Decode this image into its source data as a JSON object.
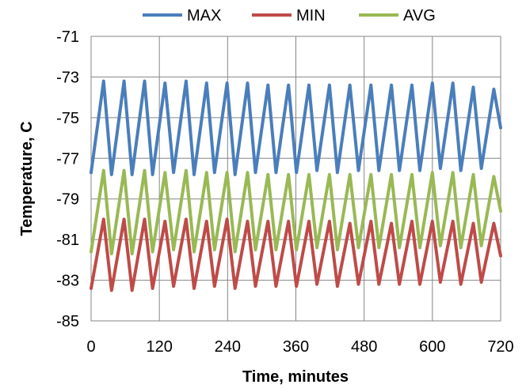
{
  "chart_data": {
    "type": "line",
    "title": "",
    "xlabel": "Time, minutes",
    "ylabel": "Temperature, C",
    "xlim": [
      0,
      720
    ],
    "ylim": [
      -85,
      -71
    ],
    "x_ticks": [
      0,
      120,
      240,
      360,
      480,
      600,
      720
    ],
    "y_ticks": [
      -71,
      -73,
      -75,
      -77,
      -79,
      -81,
      -83,
      -85
    ],
    "grid": true,
    "legend_position": "top",
    "series": [
      {
        "name": "MAX",
        "color": "#4a7ebb",
        "x": [
          0,
          22,
          36,
          58,
          72,
          94,
          108,
          130,
          145,
          167,
          181,
          203,
          217,
          239,
          253,
          275,
          289,
          311,
          325,
          347,
          361,
          383,
          397,
          419,
          433,
          455,
          470,
          492,
          506,
          528,
          542,
          564,
          578,
          600,
          614,
          636,
          650,
          672,
          686,
          708,
          720
        ],
        "values": [
          -77.7,
          -73.2,
          -77.8,
          -73.2,
          -77.8,
          -73.2,
          -77.8,
          -73.3,
          -77.7,
          -73.2,
          -77.8,
          -73.3,
          -77.7,
          -73.3,
          -77.8,
          -73.3,
          -77.7,
          -73.4,
          -77.7,
          -73.4,
          -77.7,
          -73.4,
          -77.6,
          -73.4,
          -77.7,
          -73.4,
          -77.6,
          -73.4,
          -77.6,
          -73.4,
          -77.6,
          -73.4,
          -77.6,
          -73.3,
          -77.5,
          -73.3,
          -77.6,
          -73.5,
          -77.5,
          -73.6,
          -75.5
        ]
      },
      {
        "name": "MIN",
        "color": "#be4b48",
        "x": [
          0,
          22,
          36,
          58,
          72,
          94,
          108,
          130,
          145,
          167,
          181,
          203,
          217,
          239,
          253,
          275,
          289,
          311,
          325,
          347,
          361,
          383,
          397,
          419,
          433,
          455,
          470,
          492,
          506,
          528,
          542,
          564,
          578,
          600,
          614,
          636,
          650,
          672,
          686,
          708,
          720
        ],
        "values": [
          -83.4,
          -80.0,
          -83.5,
          -80.0,
          -83.5,
          -80.0,
          -83.4,
          -80.1,
          -83.3,
          -80.0,
          -83.4,
          -80.1,
          -83.3,
          -80.0,
          -83.4,
          -80.1,
          -83.3,
          -80.1,
          -83.3,
          -80.1,
          -83.3,
          -80.1,
          -83.2,
          -80.1,
          -83.3,
          -80.2,
          -83.2,
          -80.1,
          -83.2,
          -80.2,
          -83.2,
          -80.1,
          -83.2,
          -80.1,
          -83.1,
          -80.1,
          -83.2,
          -80.2,
          -83.1,
          -80.2,
          -81.8
        ]
      },
      {
        "name": "AVG",
        "color": "#98b954",
        "x": [
          0,
          22,
          36,
          58,
          72,
          94,
          108,
          130,
          145,
          167,
          181,
          203,
          217,
          239,
          253,
          275,
          289,
          311,
          325,
          347,
          361,
          383,
          397,
          419,
          433,
          455,
          470,
          492,
          506,
          528,
          542,
          564,
          578,
          600,
          614,
          636,
          650,
          672,
          686,
          708,
          720
        ],
        "values": [
          -81.6,
          -77.6,
          -81.7,
          -77.6,
          -81.7,
          -77.6,
          -81.6,
          -77.7,
          -81.5,
          -77.6,
          -81.6,
          -77.7,
          -81.5,
          -77.7,
          -81.6,
          -77.7,
          -81.5,
          -77.8,
          -81.5,
          -77.8,
          -81.5,
          -77.8,
          -81.4,
          -77.8,
          -81.5,
          -77.8,
          -81.4,
          -77.8,
          -81.4,
          -77.8,
          -81.4,
          -77.8,
          -81.4,
          -77.7,
          -81.3,
          -77.7,
          -81.4,
          -77.8,
          -81.3,
          -77.9,
          -79.6
        ]
      }
    ]
  }
}
